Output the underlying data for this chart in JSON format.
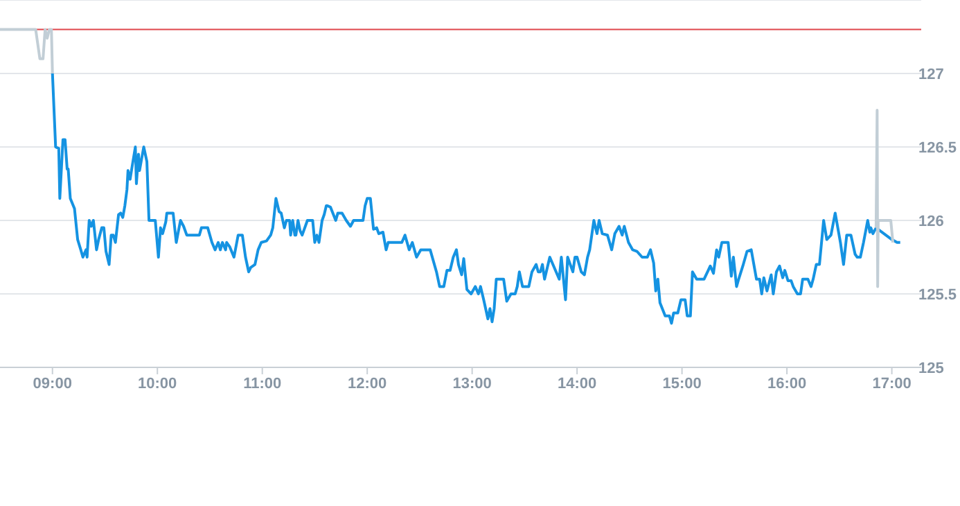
{
  "chart_data": {
    "type": "line",
    "xlim": [
      8.5,
      17.28
    ],
    "xticks": [
      {
        "value": 9,
        "label": "09:00"
      },
      {
        "value": 10,
        "label": "10:00"
      },
      {
        "value": 11,
        "label": "11:00"
      },
      {
        "value": 12,
        "label": "12:00"
      },
      {
        "value": 13,
        "label": "13:00"
      },
      {
        "value": 14,
        "label": "14:00"
      },
      {
        "value": 15,
        "label": "15:00"
      },
      {
        "value": 16,
        "label": "16:00"
      },
      {
        "value": 17,
        "label": "17:00"
      }
    ],
    "ylim": [
      125,
      127.5
    ],
    "yticks": [
      125,
      125.5,
      126,
      126.5,
      127
    ],
    "grid": "y",
    "marker": "none",
    "line_style": "solid",
    "ref_lines": [
      {
        "axis": "y",
        "value": 127.3,
        "color": "#e0474c"
      }
    ],
    "series": [
      {
        "color": "#c2ced6",
        "x": [
          8.5,
          8.84,
          8.88,
          8.91,
          8.93,
          8.95,
          8.97,
          8.99,
          9.0
        ],
        "values": [
          127.3,
          127.3,
          127.1,
          127.1,
          127.3,
          127.24,
          127.3,
          127.3,
          127.0
        ]
      },
      {
        "color": "#1593e2",
        "x": [
          9.0,
          9.03,
          9.06,
          9.07,
          9.1,
          9.12,
          9.14,
          9.15,
          9.17,
          9.21,
          9.24,
          9.27,
          9.29,
          9.32,
          9.33,
          9.35,
          9.37,
          9.39,
          9.42,
          9.44,
          9.47,
          9.49,
          9.51,
          9.54,
          9.56,
          9.58,
          9.6,
          9.63,
          9.65,
          9.67,
          9.69,
          9.71,
          9.72,
          9.74,
          9.76,
          9.79,
          9.8,
          9.82,
          9.83,
          9.85,
          9.87,
          9.9,
          9.92,
          9.96,
          9.98,
          10.01,
          10.03,
          10.05,
          10.08,
          10.09,
          10.15,
          10.18,
          10.22,
          10.25,
          10.28,
          10.31,
          10.4,
          10.42,
          10.48,
          10.52,
          10.55,
          10.58,
          10.6,
          10.62,
          10.65,
          10.66,
          10.69,
          10.73,
          10.77,
          10.81,
          10.84,
          10.87,
          10.89,
          10.93,
          10.96,
          10.99,
          11.04,
          11.08,
          11.1,
          11.13,
          11.16,
          11.18,
          11.21,
          11.23,
          11.26,
          11.27,
          11.29,
          11.31,
          11.32,
          11.34,
          11.36,
          11.38,
          11.43,
          11.48,
          11.5,
          11.52,
          11.54,
          11.57,
          11.59,
          11.61,
          11.62,
          11.65,
          11.7,
          11.72,
          11.76,
          11.8,
          11.84,
          11.87,
          11.96,
          11.98,
          12.0,
          12.03,
          12.06,
          12.09,
          12.11,
          12.15,
          12.18,
          12.2,
          12.33,
          12.36,
          12.4,
          12.43,
          12.47,
          12.51,
          12.55,
          12.6,
          12.66,
          12.69,
          12.73,
          12.76,
          12.79,
          12.82,
          12.85,
          12.87,
          12.9,
          12.92,
          12.95,
          12.99,
          13.03,
          13.06,
          13.08,
          13.11,
          13.15,
          13.17,
          13.19,
          13.21,
          13.23,
          13.3,
          13.33,
          13.37,
          13.41,
          13.43,
          13.45,
          13.48,
          13.54,
          13.57,
          13.61,
          13.63,
          13.65,
          13.67,
          13.69,
          13.74,
          13.83,
          13.85,
          13.89,
          13.91,
          13.96,
          13.98,
          14.0,
          14.04,
          14.07,
          14.1,
          14.12,
          14.16,
          14.19,
          14.21,
          14.24,
          14.29,
          14.33,
          14.36,
          14.4,
          14.43,
          14.45,
          14.49,
          14.53,
          14.57,
          14.62,
          14.67,
          14.7,
          14.73,
          14.75,
          14.77,
          14.79,
          14.84,
          14.88,
          14.9,
          14.92,
          14.96,
          14.99,
          15.03,
          15.05,
          15.08,
          15.1,
          15.14,
          15.21,
          15.25,
          15.27,
          15.3,
          15.33,
          15.35,
          15.38,
          15.44,
          15.47,
          15.49,
          15.52,
          15.54,
          15.58,
          15.62,
          15.66,
          15.71,
          15.74,
          15.76,
          15.78,
          15.81,
          15.85,
          15.87,
          15.9,
          15.93,
          15.96,
          15.98,
          16.01,
          16.04,
          16.06,
          16.1,
          16.13,
          16.15,
          16.2,
          16.23,
          16.25,
          16.28,
          16.31,
          16.35,
          16.38,
          16.42,
          16.46,
          16.51,
          16.54,
          16.57,
          16.61,
          16.65,
          16.67,
          16.7,
          16.73,
          16.77,
          16.79,
          16.8,
          16.82,
          16.85,
          17.0,
          17.05,
          17.08
        ],
        "values": [
          127.0,
          126.5,
          126.49,
          126.15,
          126.55,
          126.55,
          126.35,
          126.35,
          126.15,
          126.08,
          125.87,
          125.8,
          125.75,
          125.8,
          125.75,
          126.0,
          125.96,
          126.0,
          125.8,
          125.87,
          125.95,
          125.95,
          125.79,
          125.7,
          125.9,
          125.9,
          125.85,
          126.04,
          126.05,
          126.02,
          126.1,
          126.21,
          126.34,
          126.28,
          126.37,
          126.5,
          126.25,
          126.45,
          126.34,
          126.42,
          126.5,
          126.4,
          126.0,
          126.0,
          126.0,
          125.75,
          125.95,
          125.91,
          125.99,
          126.05,
          126.05,
          125.85,
          126.0,
          125.96,
          125.9,
          125.9,
          125.9,
          125.95,
          125.95,
          125.85,
          125.8,
          125.85,
          125.8,
          125.85,
          125.8,
          125.85,
          125.82,
          125.75,
          125.9,
          125.9,
          125.75,
          125.65,
          125.68,
          125.7,
          125.8,
          125.85,
          125.86,
          125.9,
          125.95,
          126.15,
          126.06,
          126.05,
          125.95,
          126.0,
          126.0,
          125.9,
          126.0,
          125.9,
          125.9,
          126.0,
          125.93,
          125.9,
          126.0,
          126.0,
          125.85,
          125.9,
          125.85,
          126.0,
          126.04,
          126.1,
          126.1,
          126.09,
          126.0,
          126.05,
          126.05,
          126.0,
          125.96,
          126.0,
          126.0,
          126.1,
          126.15,
          126.15,
          125.94,
          125.95,
          125.91,
          125.92,
          125.8,
          125.85,
          125.85,
          125.9,
          125.8,
          125.85,
          125.75,
          125.8,
          125.8,
          125.8,
          125.65,
          125.55,
          125.55,
          125.66,
          125.66,
          125.75,
          125.8,
          125.7,
          125.63,
          125.74,
          125.53,
          125.5,
          125.55,
          125.5,
          125.55,
          125.46,
          125.33,
          125.4,
          125.31,
          125.4,
          125.6,
          125.6,
          125.45,
          125.5,
          125.5,
          125.55,
          125.65,
          125.55,
          125.55,
          125.65,
          125.7,
          125.65,
          125.65,
          125.7,
          125.6,
          125.75,
          125.6,
          125.75,
          125.46,
          125.75,
          125.65,
          125.75,
          125.75,
          125.65,
          125.63,
          125.75,
          125.8,
          126.0,
          125.91,
          126.0,
          125.91,
          125.9,
          125.8,
          125.91,
          125.96,
          125.9,
          125.96,
          125.85,
          125.8,
          125.79,
          125.75,
          125.75,
          125.8,
          125.71,
          125.52,
          125.6,
          125.44,
          125.35,
          125.35,
          125.3,
          125.37,
          125.37,
          125.46,
          125.46,
          125.35,
          125.35,
          125.65,
          125.6,
          125.6,
          125.66,
          125.69,
          125.64,
          125.8,
          125.75,
          125.85,
          125.85,
          125.62,
          125.75,
          125.55,
          125.6,
          125.69,
          125.79,
          125.8,
          125.6,
          125.6,
          125.5,
          125.61,
          125.52,
          125.63,
          125.5,
          125.65,
          125.69,
          125.61,
          125.66,
          125.59,
          125.59,
          125.55,
          125.5,
          125.5,
          125.6,
          125.6,
          125.55,
          125.6,
          125.7,
          125.7,
          126.0,
          125.87,
          125.9,
          126.05,
          125.85,
          125.7,
          125.9,
          125.9,
          125.77,
          125.75,
          125.75,
          125.85,
          126.0,
          125.92,
          125.95,
          125.91,
          125.95,
          125.87,
          125.85,
          125.85
        ]
      },
      {
        "color": "#c2ced6",
        "x": [
          16.85,
          16.86,
          16.865,
          16.87,
          16.99,
          17.01
        ],
        "values": [
          125.95,
          126.75,
          125.55,
          126.0,
          126.0,
          125.85
        ]
      }
    ]
  }
}
